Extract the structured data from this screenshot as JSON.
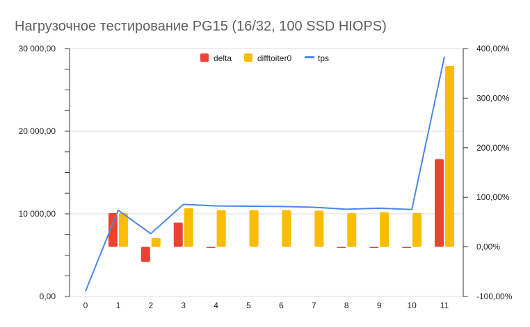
{
  "chart_data": {
    "type": "bar+line",
    "title": "Нагрузочное тестирование PG15 (16/32, 100 SSD HIOPS)",
    "categories": [
      "0",
      "1",
      "2",
      "3",
      "4",
      "5",
      "6",
      "7",
      "8",
      "9",
      "10",
      "11"
    ],
    "left_axis": {
      "ticks": [
        "0,00",
        "10 000,00",
        "20 000,00",
        "30 000,00"
      ],
      "range": [
        0,
        30000
      ]
    },
    "right_axis": {
      "ticks": [
        "-100,00%",
        "0,00%",
        "100,00%",
        "200,00%",
        "300,00%",
        "400,00%"
      ],
      "range": [
        -100,
        400
      ]
    },
    "series": [
      {
        "name": "delta",
        "type": "bar",
        "axis": "right",
        "color": "#ea4335",
        "values": [
          0,
          68,
          -30,
          49,
          -1,
          0,
          0,
          0,
          -2,
          -1,
          -1,
          177
        ]
      },
      {
        "name": "difftoiter0",
        "type": "bar",
        "axis": "right",
        "color": "#fbbc04",
        "values": [
          0,
          68,
          18,
          78,
          74,
          74,
          74,
          73,
          68,
          70,
          68,
          365
        ]
      },
      {
        "name": "tps",
        "type": "line",
        "axis": "left",
        "color": "#4a86e8",
        "values": [
          640,
          10440,
          7600,
          11140,
          10960,
          10920,
          10890,
          10800,
          10560,
          10680,
          10530,
          29040
        ]
      }
    ],
    "legend_position": "top",
    "gridlines": true
  }
}
